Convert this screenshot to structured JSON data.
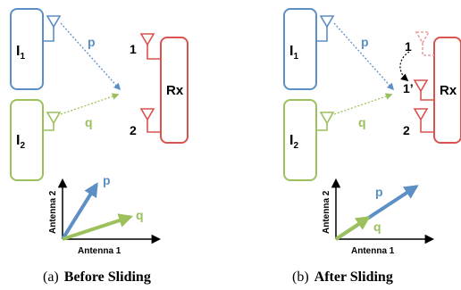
{
  "colors": {
    "blue": "#5b8fc6",
    "green": "#9cc15c",
    "red": "#d9534f",
    "pink": "#e8a0a0",
    "black": "#000000"
  },
  "panels": [
    {
      "interferer_1": {
        "name": "I",
        "sub": "1"
      },
      "interferer_2": {
        "name": "I",
        "sub": "2"
      },
      "receiver": "Rx",
      "channel_p": "p",
      "channel_q": "q",
      "rx_antenna_1": "1",
      "rx_antenna_2": "2",
      "axis_y": "Antenna 2",
      "axis_x": "Antenna 1",
      "vec_p": "p",
      "vec_q": "q",
      "caption_prefix": "(a)",
      "caption_title": "Before Sliding"
    },
    {
      "interferer_1": {
        "name": "I",
        "sub": "1"
      },
      "interferer_2": {
        "name": "I",
        "sub": "2"
      },
      "receiver": "Rx",
      "channel_p": "p",
      "channel_q": "q",
      "rx_antenna_1": "1",
      "rx_antenna_1_moved": "1’",
      "rx_antenna_2": "2",
      "axis_y": "Antenna 2",
      "axis_x": "Antenna 1",
      "vec_p": "p",
      "vec_q": "q",
      "caption_prefix": "(b)",
      "caption_title": "After Sliding"
    }
  ]
}
